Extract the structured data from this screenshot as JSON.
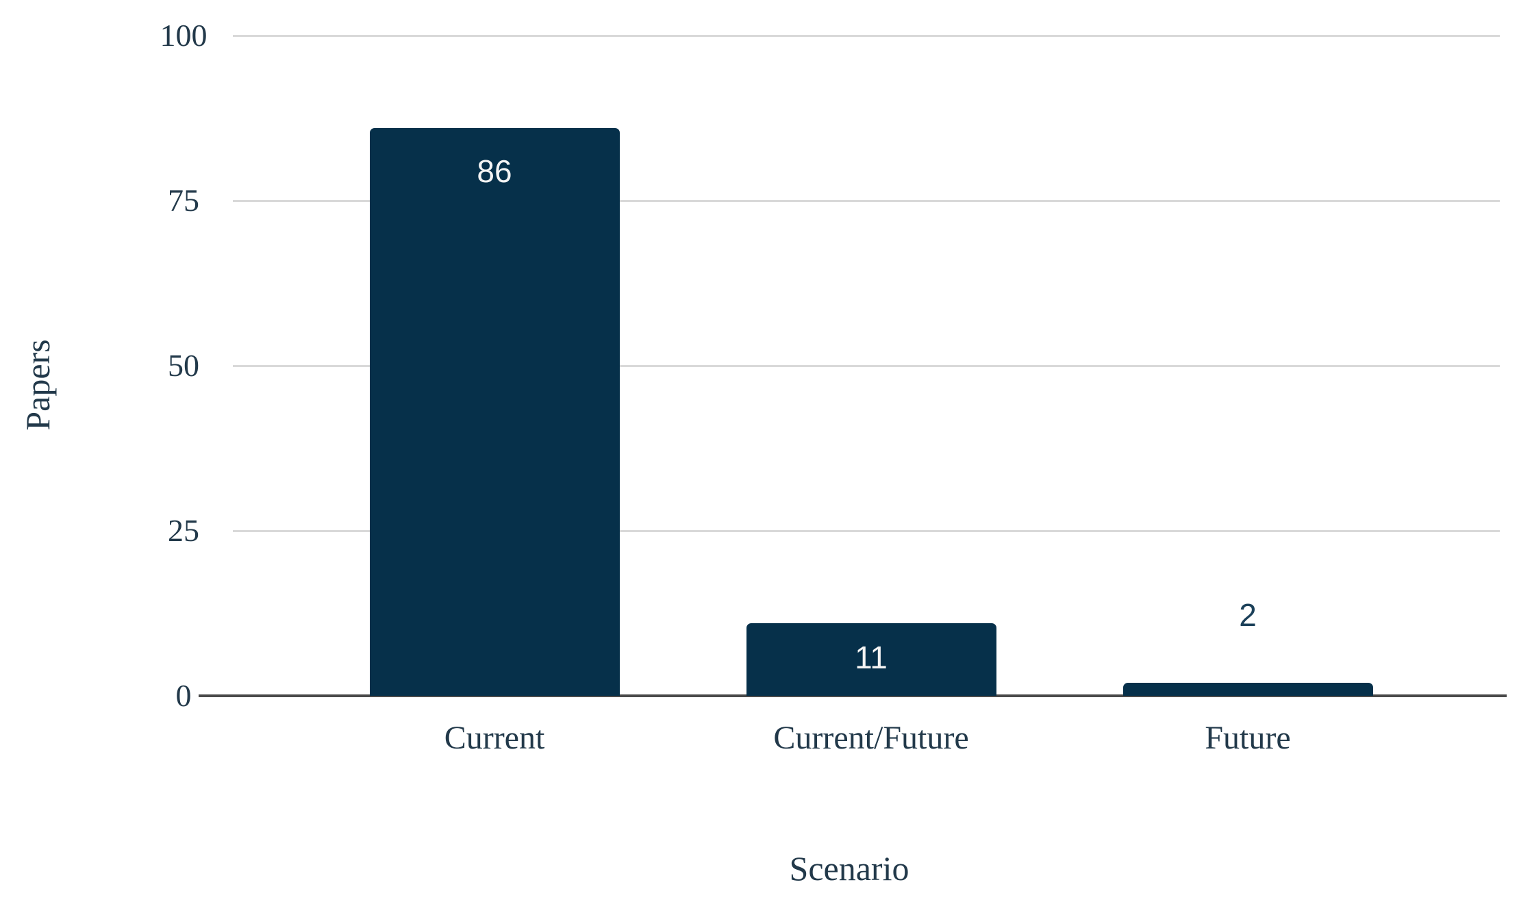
{
  "chart_data": {
    "type": "bar",
    "title": "",
    "categories": [
      "Current",
      "Current/Future",
      "Future"
    ],
    "values": [
      86,
      11,
      2
    ],
    "xlabel": "Scenario",
    "ylabel": "Papers",
    "yticks": [
      0,
      25,
      50,
      75,
      100
    ],
    "ylim": [
      0,
      100
    ],
    "grid": true,
    "legend": "none",
    "colors": {
      "bar_fill": "#06304a",
      "value_label_inside": "#f4f4f4",
      "value_label_outside": "#1b4059",
      "axis_text": "#22394a",
      "gridline": "#d9d9d9",
      "baseline": "#4a4a4a",
      "background": "#ffffff"
    }
  }
}
